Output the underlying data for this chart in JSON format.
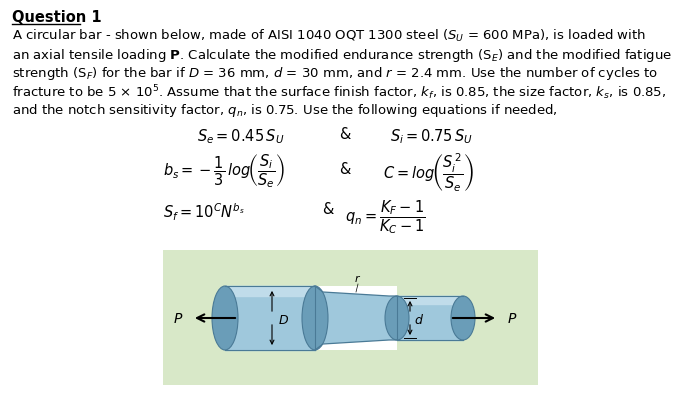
{
  "title": "Question 1",
  "background_color": "#ffffff",
  "box_color": "#d8e8c8",
  "text_color": "#000000",
  "bar_face": "#9fc8dc",
  "bar_dark": "#6a9db8",
  "bar_edge": "#4a7a96",
  "bar_highlight": "#c0dcea",
  "line1": "A circular bar - shown below, made of AISI 1040 OQT 1300 steel ($S_U$ = 600 MPa), is loaded with",
  "line2": "an axial tensile loading $\\mathbf{P}$. Calculate the modified endurance strength (S$_E$) and the modified fatigue",
  "line3": "strength (S$_F$) for the bar if $D$ = 36 mm, $d$ = 30 mm, and $r$ = 2.4 mm. Use the number of cycles to",
  "line4": "fracture to be 5 $\\times$ 10$^5$. Assume that the surface finish factor, $k_f$, is 0.85, the size factor, $k_s$, is 0.85,",
  "line5": "and the notch sensitivity factor, $q_n$, is 0.75. Use the following equations if needed,",
  "eq1a": "$S_e = 0.45\\,S_U$",
  "eq1b": "$S_i = 0.75\\,S_U$",
  "eq2a": "$b_s = -\\dfrac{1}{3}\\,log\\!\\left(\\dfrac{S_i}{S_e}\\right)$",
  "eq2b": "$C = log\\!\\left(\\dfrac{S_i^{\\,2}}{S_e}\\right)$",
  "eq3a": "$S_f = 10^C N^{b_s}$",
  "eq3b": "$q_n = \\dfrac{K_F - 1}{K_C - 1}$",
  "amp": "&",
  "label_P": "$P$",
  "label_D": "$D$",
  "label_d": "$d$",
  "label_r": "$r$"
}
